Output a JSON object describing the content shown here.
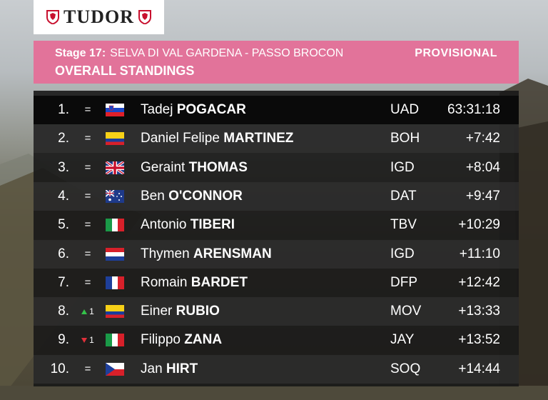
{
  "brand": {
    "logo_text": "TUDOR"
  },
  "header": {
    "stage_label": "Stage 17:",
    "stage_name": "SELVA DI VAL GARDENA - PASSO BROCON",
    "status": "PROVISIONAL",
    "title": "OVERALL STANDINGS"
  },
  "colors": {
    "header_pink": "#e2739a",
    "up_arrow": "#34c24a",
    "down_arrow": "#e0303a"
  },
  "standings": [
    {
      "pos": "1.",
      "change": "=",
      "flag": "slovenia-flag",
      "first": "Tadej",
      "last": "POGACAR",
      "team": "UAD",
      "time": "63:31:18"
    },
    {
      "pos": "2.",
      "change": "=",
      "flag": "colombia-flag",
      "first": "Daniel Felipe",
      "last": "MARTINEZ",
      "team": "BOH",
      "time": "+7:42"
    },
    {
      "pos": "3.",
      "change": "=",
      "flag": "uk-flag",
      "first": "Geraint",
      "last": "THOMAS",
      "team": "IGD",
      "time": "+8:04"
    },
    {
      "pos": "4.",
      "change": "=",
      "flag": "australia-flag",
      "first": "Ben",
      "last": "O'CONNOR",
      "team": "DAT",
      "time": "+9:47"
    },
    {
      "pos": "5.",
      "change": "=",
      "flag": "italy-flag",
      "first": "Antonio",
      "last": "TIBERI",
      "team": "TBV",
      "time": "+10:29"
    },
    {
      "pos": "6.",
      "change": "=",
      "flag": "netherlands-flag",
      "first": "Thymen",
      "last": "ARENSMAN",
      "team": "IGD",
      "time": "+11:10"
    },
    {
      "pos": "7.",
      "change": "=",
      "flag": "france-flag",
      "first": "Romain",
      "last": "BARDET",
      "team": "DFP",
      "time": "+12:42"
    },
    {
      "pos": "8.",
      "change": "1",
      "direction": "up",
      "flag": "colombia-flag",
      "first": "Einer",
      "last": "RUBIO",
      "team": "MOV",
      "time": "+13:33"
    },
    {
      "pos": "9.",
      "change": "1",
      "direction": "down",
      "flag": "italy-flag",
      "first": "Filippo",
      "last": "ZANA",
      "team": "JAY",
      "time": "+13:52"
    },
    {
      "pos": "10.",
      "change": "=",
      "flag": "czech-flag",
      "first": "Jan",
      "last": "HIRT",
      "team": "SOQ",
      "time": "+14:44"
    }
  ]
}
